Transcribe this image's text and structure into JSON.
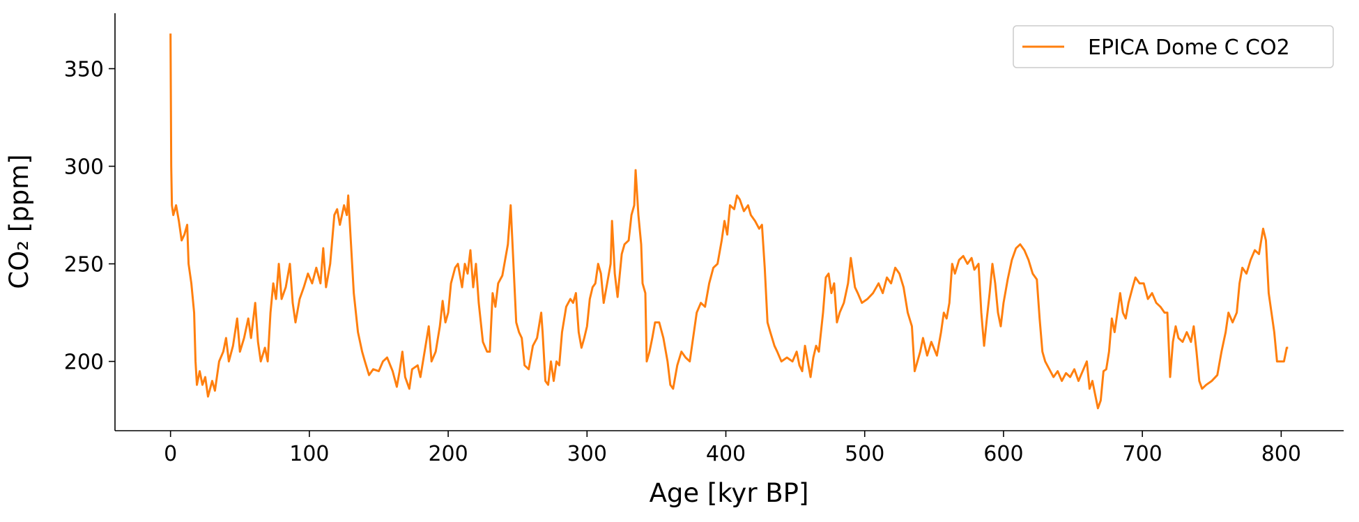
{
  "chart_data": {
    "type": "line",
    "xlabel": "Age [kyr BP]",
    "ylabel": "CO₂ [ppm]",
    "xlim": [
      -40,
      845
    ],
    "ylim": [
      164.5,
      378.4
    ],
    "xticks": [
      0,
      100,
      200,
      300,
      400,
      500,
      600,
      700,
      800
    ],
    "yticks": [
      200,
      250,
      300,
      350
    ],
    "legend": "upper right",
    "grid": false,
    "series": [
      {
        "name": "EPICA Dome C CO2",
        "color": "#ff7f0e",
        "x": [
          0,
          0.5,
          1,
          2,
          4,
          6,
          8,
          10,
          12,
          13,
          15,
          17,
          18,
          19,
          21,
          23,
          25,
          27,
          30,
          32,
          35,
          38,
          40,
          42,
          45,
          48,
          50,
          53,
          56,
          58,
          61,
          63,
          65,
          68,
          70,
          72,
          74,
          76,
          78,
          80,
          83,
          86,
          88,
          90,
          93,
          96,
          99,
          102,
          105,
          108,
          110,
          112,
          115,
          118,
          120,
          122,
          125,
          127,
          128,
          130,
          132,
          135,
          138,
          140,
          143,
          146,
          150,
          153,
          156,
          160,
          163,
          165,
          167,
          169,
          172,
          174,
          178,
          180,
          183,
          186,
          188,
          191,
          194,
          196,
          198,
          200,
          202,
          205,
          207,
          210,
          212,
          214,
          216,
          218,
          220,
          222,
          225,
          228,
          230,
          232,
          234,
          236,
          239,
          241,
          243,
          245,
          247,
          249,
          251,
          253,
          255,
          258,
          261,
          264,
          267,
          268,
          270,
          272,
          274,
          276,
          278,
          280,
          282,
          285,
          288,
          290,
          292,
          294,
          296,
          298,
          300,
          302,
          304,
          306,
          308,
          310,
          312,
          315,
          317,
          318,
          320,
          322,
          325,
          327,
          330,
          332,
          334,
          335,
          337,
          339,
          340,
          342,
          343,
          345,
          347,
          349,
          352,
          355,
          358,
          360,
          362,
          365,
          368,
          371,
          374,
          376,
          379,
          382,
          385,
          388,
          391,
          394,
          397,
          399,
          401,
          403,
          406,
          408,
          410,
          413,
          416,
          418,
          421,
          424,
          426,
          428,
          430,
          432,
          435,
          437,
          440,
          444,
          448,
          451,
          453,
          455,
          457,
          459,
          461,
          463,
          465,
          467,
          470,
          472,
          474,
          476,
          478,
          480,
          482,
          485,
          488,
          490,
          493,
          495,
          498,
          502,
          506,
          510,
          513,
          516,
          519,
          522,
          525,
          528,
          531,
          534,
          536,
          538,
          540,
          542,
          545,
          548,
          552,
          555,
          557,
          559,
          561,
          563,
          565,
          568,
          571,
          574,
          577,
          579,
          582,
          584,
          586,
          588,
          590,
          592,
          594,
          596,
          598,
          600,
          603,
          606,
          609,
          612,
          615,
          618,
          621,
          624,
          626,
          628,
          630,
          633,
          636,
          639,
          642,
          645,
          648,
          651,
          654,
          657,
          660,
          662,
          664,
          666,
          668,
          670,
          672,
          674,
          676,
          678,
          680,
          682,
          684,
          686,
          688,
          690,
          693,
          695,
          698,
          701,
          704,
          707,
          710,
          713,
          716,
          718,
          720,
          722,
          724,
          726,
          729,
          732,
          735,
          737,
          739,
          741,
          743,
          746,
          750,
          754,
          757,
          760,
          762,
          765,
          768,
          770,
          772,
          775,
          778,
          781,
          784,
          787,
          789,
          791,
          793,
          795,
          797,
          800,
          802,
          804,
          805
        ],
        "values": [
          368,
          300,
          280,
          275,
          280,
          272,
          262,
          265,
          270,
          250,
          240,
          225,
          200,
          188,
          195,
          188,
          192,
          182,
          190,
          185,
          200,
          205,
          212,
          200,
          208,
          222,
          205,
          212,
          222,
          212,
          230,
          210,
          200,
          207,
          200,
          225,
          240,
          232,
          250,
          232,
          238,
          250,
          230,
          220,
          232,
          238,
          245,
          240,
          248,
          240,
          258,
          238,
          250,
          275,
          278,
          270,
          280,
          275,
          285,
          260,
          235,
          215,
          205,
          200,
          193,
          196,
          195,
          200,
          202,
          195,
          187,
          195,
          205,
          192,
          186,
          196,
          198,
          192,
          205,
          218,
          200,
          205,
          218,
          231,
          220,
          225,
          240,
          248,
          250,
          238,
          250,
          245,
          257,
          238,
          250,
          230,
          210,
          205,
          205,
          235,
          228,
          240,
          244,
          252,
          260,
          280,
          250,
          220,
          215,
          212,
          198,
          196,
          208,
          212,
          225,
          215,
          190,
          188,
          200,
          190,
          200,
          198,
          215,
          228,
          232,
          230,
          235,
          215,
          207,
          212,
          218,
          232,
          238,
          240,
          250,
          245,
          230,
          242,
          250,
          272,
          245,
          233,
          255,
          260,
          262,
          275,
          280,
          298,
          275,
          260,
          240,
          235,
          200,
          205,
          212,
          220,
          220,
          212,
          200,
          188,
          186,
          198,
          205,
          202,
          200,
          210,
          225,
          230,
          228,
          240,
          248,
          250,
          262,
          272,
          265,
          280,
          278,
          285,
          283,
          277,
          280,
          275,
          272,
          268,
          270,
          248,
          220,
          215,
          208,
          205,
          200,
          202,
          200,
          205,
          198,
          195,
          208,
          200,
          192,
          202,
          208,
          205,
          225,
          243,
          245,
          235,
          240,
          220,
          225,
          230,
          240,
          253,
          238,
          235,
          230,
          232,
          235,
          240,
          235,
          243,
          240,
          248,
          245,
          238,
          225,
          218,
          195,
          200,
          205,
          212,
          203,
          210,
          203,
          215,
          225,
          222,
          230,
          250,
          245,
          252,
          254,
          250,
          253,
          247,
          250,
          225,
          208,
          222,
          235,
          250,
          240,
          225,
          218,
          230,
          242,
          252,
          258,
          260,
          257,
          252,
          245,
          242,
          222,
          205,
          200,
          196,
          192,
          195,
          190,
          194,
          192,
          196,
          190,
          195,
          200,
          186,
          190,
          183,
          176,
          180,
          195,
          196,
          205,
          222,
          215,
          225,
          235,
          225,
          222,
          230,
          238,
          243,
          240,
          240,
          232,
          235,
          230,
          228,
          225,
          225,
          192,
          210,
          218,
          212,
          210,
          215,
          210,
          218,
          205,
          190,
          186,
          188,
          190,
          193,
          205,
          215,
          225,
          220,
          225,
          240,
          248,
          245,
          252,
          257,
          255,
          268,
          262,
          235,
          225,
          215,
          200,
          200,
          200,
          207,
          207
        ]
      }
    ]
  }
}
